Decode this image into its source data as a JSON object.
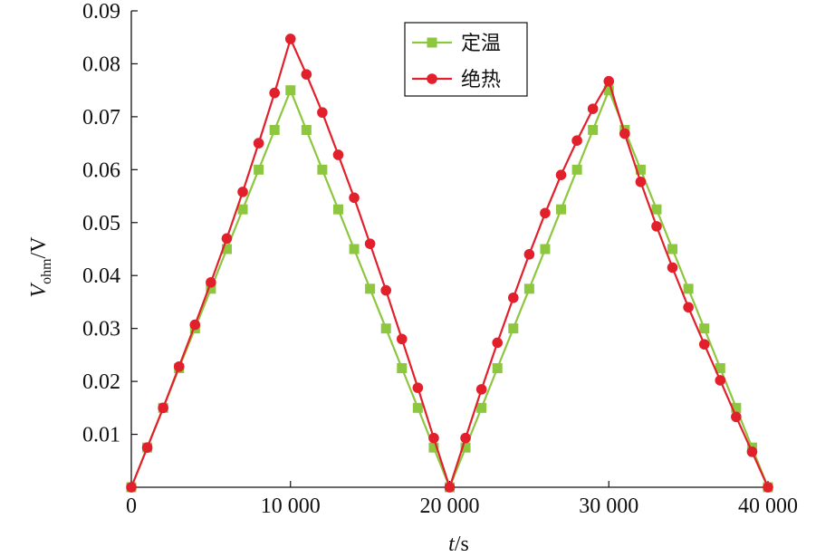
{
  "chart_data": {
    "type": "line",
    "xlabel": "t/s",
    "xlabel_parts": {
      "italic": "t",
      "rest": "/s"
    },
    "ylabel": "Vohm/V",
    "ylabel_parts": {
      "main": "V",
      "sub": "ohm",
      "rest": "/V"
    },
    "xlim": [
      0,
      40000
    ],
    "ylim": [
      0,
      0.09
    ],
    "x_ticks": [
      0,
      10000,
      20000,
      30000,
      40000
    ],
    "x_tick_labels": [
      "0",
      "10 000",
      "20 000",
      "30 000",
      "40 000"
    ],
    "y_ticks": [
      0.01,
      0.02,
      0.03,
      0.04,
      0.05,
      0.06,
      0.07,
      0.08,
      0.09
    ],
    "y_tick_labels": [
      "0.01",
      "0.02",
      "0.03",
      "0.04",
      "0.05",
      "0.06",
      "0.07",
      "0.08",
      "0.09"
    ],
    "legend_position": "top-center",
    "grid": false,
    "series": [
      {
        "name": "定温",
        "color": "#8dc63f",
        "marker": "square",
        "x": [
          0,
          1000,
          2000,
          3000,
          4000,
          5000,
          6000,
          7000,
          8000,
          9000,
          10000,
          11000,
          12000,
          13000,
          14000,
          15000,
          16000,
          17000,
          18000,
          19000,
          20000,
          21000,
          22000,
          23000,
          24000,
          25000,
          26000,
          27000,
          28000,
          29000,
          30000,
          31000,
          32000,
          33000,
          34000,
          35000,
          36000,
          37000,
          38000,
          39000,
          40000
        ],
        "values": [
          0,
          0.0075,
          0.015,
          0.0225,
          0.03,
          0.0375,
          0.045,
          0.0525,
          0.06,
          0.0675,
          0.075,
          0.0675,
          0.06,
          0.0525,
          0.045,
          0.0375,
          0.03,
          0.0225,
          0.015,
          0.0075,
          0,
          0.0075,
          0.015,
          0.0225,
          0.03,
          0.0375,
          0.045,
          0.0525,
          0.06,
          0.0675,
          0.075,
          0.0675,
          0.06,
          0.0525,
          0.045,
          0.0375,
          0.03,
          0.0225,
          0.015,
          0.0075,
          0
        ]
      },
      {
        "name": "绝热",
        "color": "#e2202b",
        "marker": "circle",
        "x": [
          0,
          1000,
          2000,
          3000,
          4000,
          5000,
          6000,
          7000,
          8000,
          9000,
          10000,
          11000,
          12000,
          13000,
          14000,
          15000,
          16000,
          17000,
          18000,
          19000,
          20000,
          21000,
          22000,
          23000,
          24000,
          25000,
          26000,
          27000,
          28000,
          29000,
          30000,
          31000,
          32000,
          33000,
          34000,
          35000,
          36000,
          37000,
          38000,
          39000,
          40000
        ],
        "values": [
          0,
          0.0075,
          0.015,
          0.0228,
          0.0307,
          0.0387,
          0.047,
          0.0558,
          0.065,
          0.0745,
          0.0847,
          0.078,
          0.0708,
          0.0628,
          0.0547,
          0.046,
          0.0372,
          0.028,
          0.0188,
          0.0093,
          0,
          0.0093,
          0.0185,
          0.0273,
          0.0358,
          0.044,
          0.0518,
          0.059,
          0.0655,
          0.0715,
          0.0767,
          0.0668,
          0.0577,
          0.0493,
          0.0415,
          0.034,
          0.027,
          0.0202,
          0.0133,
          0.0067,
          0
        ]
      }
    ]
  }
}
